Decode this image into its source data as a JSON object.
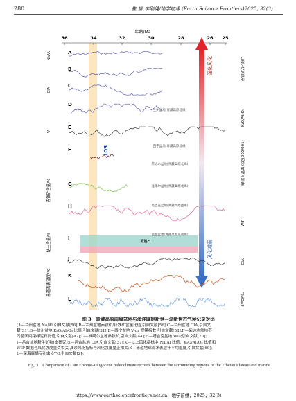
{
  "header": {
    "page": "280",
    "journal": "崔 娜,韦刚健/地学前缘 (Earth Science Frontiers)2025, 32(3)"
  },
  "figure": {
    "axis_title": "年龄/Ma",
    "ticks": [
      "36",
      "34",
      "32",
      "30",
      "28",
      "26",
      "25"
    ],
    "panels": [
      "A",
      "B",
      "C",
      "D",
      "E",
      "F",
      "G",
      "H",
      "I",
      "J",
      "K",
      "L"
    ],
    "event": "EOT",
    "left_labels": [
      "Na/Al",
      "CIA",
      "V",
      "赤铁矿含量/%",
      "黏土含量/%",
      "赤道海表温度/°C"
    ],
    "right_labels": [
      "赤铁矿/针铁矿",
      "K₂O/Al₂O₃",
      "绿泥石晶面间距(002/001)",
      "WIP",
      "CIA",
      "δ¹⁸O/‰"
    ],
    "basins": [
      "兰州盆地(青藏高原北缘)",
      "西宁盆地(青藏高原北缘)",
      "柴达木盆地(青藏高原北缘)",
      "准噶尔盆地(青藏高原北缘)",
      "塔吉克盆地(青藏高原西缘)",
      "吕合盆地(青藏高原东南缘)"
    ],
    "mineral": "蒙脱石",
    "arrow_top": "强化风化",
    "arrow_bottom": "风化减弱"
  },
  "caption": {
    "title": "图 3　青藏高原周缘盆地与海洋晚始新世—渐新世古气候记录对比",
    "lines": [
      "(A—兰州盆地 Na/Al,引自文献[56];B—兰州盆地赤铁矿/针铁矿含量比值,引自文献[56];C—兰州盆地 CIA,引自文",
      "献[31];D—兰州盆地 K₂O/Al₂O₃ 比值,引自文献[31];E—西宁盆地 V-gr 视镜指数,引自文献[58];F—柴达木盆地不",
      "同晶面间距绿泥石比值,引自文献[42];G—准噶尔盆地赤铁矿,引自文献[44];H—塔吉克盆地 WIP,引自文献[70];",
      "I—吕合盆地新生矿物(本研究);J—吕合盆地 CIA,引自文献[37];K—以上风化指标中 Na/Al 比值、K₂O/Al₂O₃ 比值和",
      "WIP 数据与风化强度呈负相关,其余风化指标与风化强度呈正相关;K—赤道地球海水表层年平均温度,引自文献[69];",
      "L—深海底栖有孔虫 δ¹⁸O,引自文献[2]。)"
    ],
    "en": "Fig. 3　Comparison of Late Eocene–Oligocene paleoclimate records between the surrounding regions of the Tibetan Plateau and marine"
  },
  "footer": "https://www.earthsciencefrontiers.net.cn　地学前缘，2025，32(3)"
}
